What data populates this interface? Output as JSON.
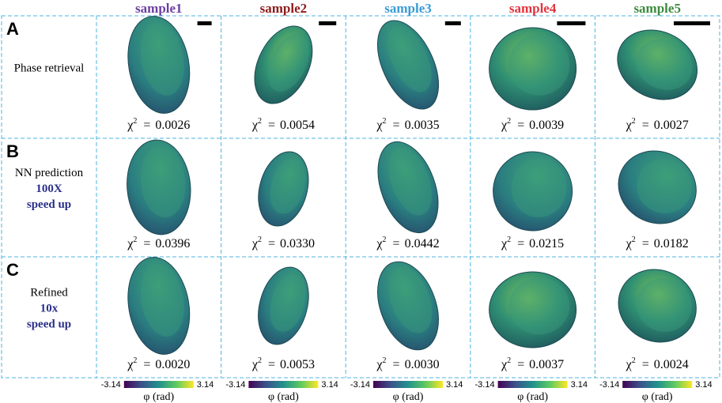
{
  "header": {
    "columns": [
      {
        "label": "sample1",
        "color": "#6b3fa0"
      },
      {
        "label": "sample2",
        "color": "#8e1b1b"
      },
      {
        "label": "sample3",
        "color": "#3a9bd6"
      },
      {
        "label": "sample4",
        "color": "#e3343e"
      },
      {
        "label": "sample5",
        "color": "#3d8b3d"
      }
    ]
  },
  "rows": [
    {
      "letter": "A",
      "label_lines": [
        {
          "text": "Phase retrieval",
          "emphasis": false
        }
      ],
      "chi_values": [
        "0.0026",
        "0.0054",
        "0.0035",
        "0.0039",
        "0.0027"
      ]
    },
    {
      "letter": "B",
      "label_lines": [
        {
          "text": "NN prediction",
          "emphasis": false
        },
        {
          "text": "100X",
          "emphasis": true
        },
        {
          "text": "speed up",
          "emphasis": true
        }
      ],
      "chi_values": [
        "0.0396",
        "0.0330",
        "0.0442",
        "0.0215",
        "0.0182"
      ]
    },
    {
      "letter": "C",
      "label_lines": [
        {
          "text": "Refined",
          "emphasis": false
        },
        {
          "text": "10x",
          "emphasis": true
        },
        {
          "text": "speed up",
          "emphasis": true
        }
      ],
      "chi_values": [
        "0.0020",
        "0.0053",
        "0.0030",
        "0.0037",
        "0.0024"
      ]
    }
  ],
  "chi_symbol": "χ",
  "chi_exponent": "2",
  "equals": "=",
  "colorbar": {
    "min_label": "-3.14",
    "max_label": "3.14",
    "axis_label": "φ (rad)"
  }
}
